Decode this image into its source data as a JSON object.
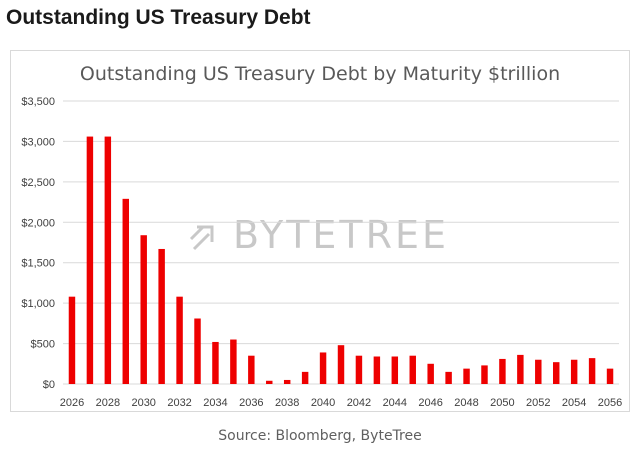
{
  "page": {
    "heading": "Outstanding US Treasury Debt",
    "source": "Source: Bloomberg, ByteTree",
    "watermark": "BYTETREE"
  },
  "colors": {
    "bar": "#ee0000",
    "grid": "#d9d9d9",
    "axis_text": "#404040",
    "title_text": "#595959",
    "watermark": "#c8c8c8"
  },
  "chart_data": {
    "type": "bar",
    "title": "Outstanding US Treasury Debt by Maturity $trillion",
    "xlabel": "",
    "ylabel": "",
    "ylim": [
      0,
      3500
    ],
    "yticks": [
      0,
      500,
      1000,
      1500,
      2000,
      2500,
      3000,
      3500
    ],
    "ytick_labels": [
      "$0",
      "$500",
      "$1,000",
      "$1,500",
      "$2,000",
      "$2,500",
      "$3,000",
      "$3,500"
    ],
    "grid": true,
    "legend": "none",
    "categories": [
      "2026",
      "2027",
      "2028",
      "2029",
      "2030",
      "2031",
      "2032",
      "2033",
      "2034",
      "2035",
      "2036",
      "2037",
      "2038",
      "2039",
      "2040",
      "2041",
      "2042",
      "2043",
      "2044",
      "2045",
      "2046",
      "2047",
      "2048",
      "2049",
      "2050",
      "2051",
      "2052",
      "2053",
      "2054",
      "2055",
      "2056"
    ],
    "x_tick_labels_shown": [
      "2026",
      "2028",
      "2030",
      "2032",
      "2034",
      "2036",
      "2038",
      "2040",
      "2042",
      "2044",
      "2046",
      "2048",
      "2050",
      "2052",
      "2054",
      "2056"
    ],
    "values": [
      1080,
      3060,
      3060,
      2290,
      1840,
      1670,
      1080,
      810,
      520,
      550,
      350,
      40,
      50,
      150,
      390,
      480,
      350,
      340,
      340,
      350,
      250,
      150,
      190,
      230,
      310,
      360,
      300,
      270,
      300,
      320,
      190
    ]
  }
}
